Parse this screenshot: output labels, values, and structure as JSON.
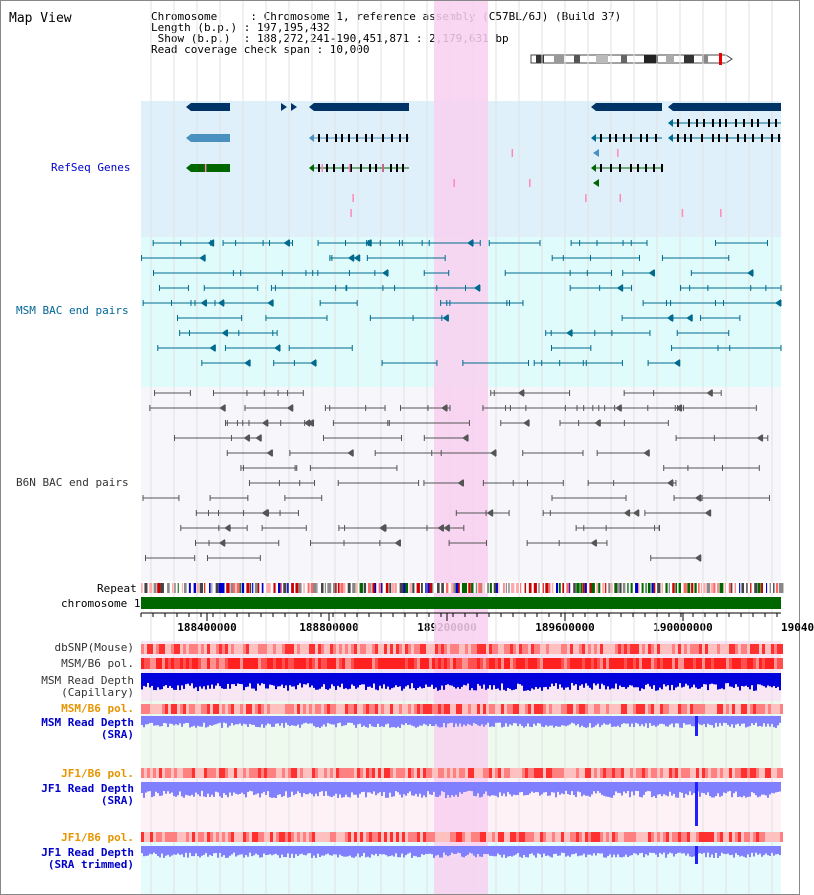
{
  "header": {
    "title": "Map View",
    "line1": "Chromosome     : Chromosome 1, reference assembly (C57BL/6J) (Build 37)",
    "line2": "Length (b.p.) : 197,195,432",
    "line3": " Show (b.p.)  : 188,272,241-190,451,871 : 2,179,631 bp",
    "line4": "Read coverage check span : 10,000"
  },
  "tracks": {
    "refseq": "RefSeq Genes",
    "msm_bac": "MSM BAC end pairs",
    "b6n_bac": "B6N BAC end pairs",
    "repeat": "Repeat",
    "chromosome": "chromosome 1",
    "dbsnp": "dbSNP(Mouse)",
    "msm_pol1": "MSM/B6 pol.",
    "msm_depth_cap_1": "MSM Read Depth",
    "msm_depth_cap_2": "(Capillary)",
    "msm_pol2": "MSM/B6 pol.",
    "msm_depth_sra_1": "MSM Read Depth",
    "msm_depth_sra_2": "(SRA)",
    "jf1_pol1": "JF1/B6 pol.",
    "jf1_depth_sra_1": "JF1 Read Depth",
    "jf1_depth_sra_2": "(SRA)",
    "jf1_pol2": "JF1/B6 pol.",
    "jf1_depth_trim_1": "JF1 Read Depth",
    "jf1_depth_trim_2": "(SRA trimmed)"
  },
  "axis": {
    "ticks": [
      "188400000",
      "188800000",
      "189200000",
      "189600000",
      "190000000",
      "19040"
    ]
  },
  "colors": {
    "gene_dark": "#003366",
    "gene_mid": "#4a90c0",
    "gene_green": "#006600",
    "msm_bac": "#006b8f",
    "b6n_bac": "#555555",
    "highlight": "#f8d0f0",
    "chromosome": "#006600",
    "depth_dark": "#0000dd",
    "depth_light": "#8080ff"
  }
}
